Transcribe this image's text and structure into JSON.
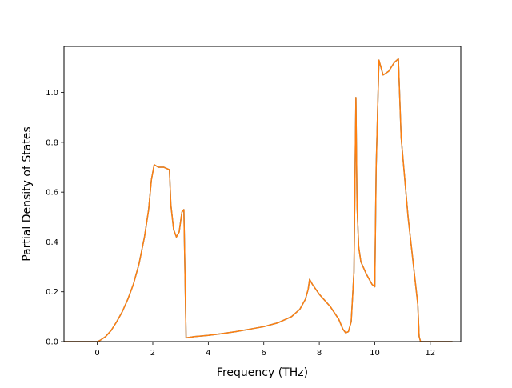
{
  "chart_data": {
    "type": "line",
    "title": "",
    "xlabel": "Frequency (THz)",
    "ylabel": "Partial Density of States",
    "xlim": [
      -1.2,
      13.1
    ],
    "ylim": [
      0.0,
      1.185
    ],
    "xticks": [
      0,
      2,
      4,
      6,
      8,
      10,
      12
    ],
    "xtick_labels": [
      "0",
      "2",
      "4",
      "6",
      "8",
      "10",
      "12"
    ],
    "yticks": [
      0.0,
      0.2,
      0.4,
      0.6,
      0.8,
      1.0
    ],
    "ytick_labels": [
      "0.0",
      "0.2",
      "0.4",
      "0.6",
      "0.8",
      "1.0"
    ],
    "grid": false,
    "legend": "none",
    "series": [
      {
        "color": "#1f77b4",
        "x": [
          -1.2,
          0.0,
          0.1,
          0.3,
          0.5,
          0.7,
          0.9,
          1.1,
          1.3,
          1.5,
          1.7,
          1.85,
          1.95,
          2.05,
          2.2,
          2.4,
          2.6,
          2.65,
          2.75,
          2.85,
          2.95,
          3.05,
          3.12,
          3.2,
          3.5,
          4.0,
          4.5,
          5.0,
          5.5,
          6.0,
          6.5,
          7.0,
          7.3,
          7.5,
          7.6,
          7.65,
          7.75,
          8.0,
          8.4,
          8.7,
          8.85,
          8.95,
          9.05,
          9.15,
          9.25,
          9.32,
          9.36,
          9.42,
          9.5,
          9.7,
          9.9,
          10.0,
          10.05,
          10.15,
          10.3,
          10.5,
          10.7,
          10.85,
          10.95,
          11.2,
          11.4,
          11.55,
          11.6,
          11.65,
          12.8
        ],
        "y": [
          0.0,
          0.0,
          0.005,
          0.02,
          0.045,
          0.08,
          0.12,
          0.17,
          0.23,
          0.31,
          0.42,
          0.53,
          0.65,
          0.71,
          0.7,
          0.7,
          0.69,
          0.55,
          0.45,
          0.42,
          0.44,
          0.52,
          0.53,
          0.015,
          0.02,
          0.025,
          0.032,
          0.04,
          0.05,
          0.06,
          0.075,
          0.1,
          0.13,
          0.17,
          0.21,
          0.25,
          0.23,
          0.19,
          0.14,
          0.09,
          0.05,
          0.035,
          0.04,
          0.08,
          0.28,
          0.98,
          0.55,
          0.38,
          0.32,
          0.27,
          0.23,
          0.22,
          0.7,
          1.13,
          1.07,
          1.085,
          1.12,
          1.135,
          0.82,
          0.5,
          0.3,
          0.15,
          0.02,
          0.0,
          0.0
        ]
      },
      {
        "color": "#ff7f0e",
        "x": [
          -1.2,
          0.0,
          0.1,
          0.3,
          0.5,
          0.7,
          0.9,
          1.1,
          1.3,
          1.5,
          1.7,
          1.85,
          1.95,
          2.05,
          2.2,
          2.4,
          2.6,
          2.65,
          2.75,
          2.85,
          2.95,
          3.05,
          3.12,
          3.2,
          3.5,
          4.0,
          4.5,
          5.0,
          5.5,
          6.0,
          6.5,
          7.0,
          7.3,
          7.5,
          7.6,
          7.65,
          7.75,
          8.0,
          8.4,
          8.7,
          8.85,
          8.95,
          9.05,
          9.15,
          9.25,
          9.32,
          9.36,
          9.42,
          9.5,
          9.7,
          9.9,
          10.0,
          10.05,
          10.15,
          10.3,
          10.5,
          10.7,
          10.85,
          10.95,
          11.2,
          11.4,
          11.55,
          11.6,
          11.65,
          12.8
        ],
        "y": [
          0.0,
          0.0,
          0.005,
          0.02,
          0.045,
          0.08,
          0.12,
          0.17,
          0.23,
          0.31,
          0.42,
          0.53,
          0.65,
          0.71,
          0.7,
          0.7,
          0.69,
          0.55,
          0.45,
          0.42,
          0.44,
          0.52,
          0.53,
          0.015,
          0.02,
          0.025,
          0.032,
          0.04,
          0.05,
          0.06,
          0.075,
          0.1,
          0.13,
          0.17,
          0.21,
          0.25,
          0.23,
          0.19,
          0.14,
          0.09,
          0.05,
          0.035,
          0.04,
          0.08,
          0.28,
          0.98,
          0.55,
          0.38,
          0.32,
          0.27,
          0.23,
          0.22,
          0.7,
          1.13,
          1.07,
          1.085,
          1.12,
          1.135,
          0.82,
          0.5,
          0.3,
          0.15,
          0.02,
          0.0,
          0.0
        ]
      }
    ]
  }
}
